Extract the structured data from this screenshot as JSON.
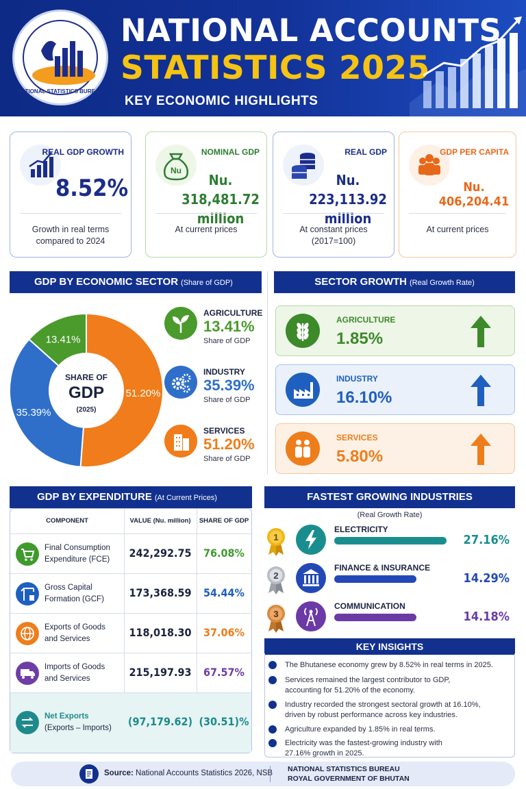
{
  "header": {
    "title_line1": "NATIONAL ACCOUNTS",
    "title_line2": "STATISTICS 2025",
    "subtitle": "KEY ECONOMIC HIGHLIGHTS",
    "logo_text": "NATIONAL STATISTICS BUREAU"
  },
  "kpis": [
    {
      "label": "REAL GDP GROWTH",
      "value": "8.52%",
      "sub1": "Growth in real terms",
      "sub2": "compared to 2024",
      "color": "#1b2d8a",
      "border": "#9fb3e0",
      "icon": "bar-chart-up-icon"
    },
    {
      "label": "NOMINAL GDP",
      "value_line1": "Nu. 318,481.72",
      "value_line2": "million",
      "sub1": "At current prices",
      "color": "#2e7d32",
      "border": "#b7d8a8",
      "icon": "money-bag-icon",
      "icon_text": "Nu"
    },
    {
      "label": "REAL GDP",
      "value_line1": "Nu. 223,113.92",
      "value_line2": "million",
      "sub1": "At constant prices",
      "sub2": "(2017=100)",
      "color": "#1b2d8a",
      "border": "#9fb3e0",
      "icon": "coins-stack-icon"
    },
    {
      "label": "GDP PER CAPITA",
      "value": "Nu. 406,204.41",
      "sub1": "At current prices",
      "color": "#e8681a",
      "border": "#f3c79f",
      "icon": "people-icon"
    }
  ],
  "sector_share": {
    "header": "GDP BY ECONOMIC SECTOR",
    "header_note": "(Share of GDP)",
    "center_line1": "SHARE OF",
    "center_line2": "GDP",
    "center_line3": "(2025)",
    "items": [
      {
        "name": "AGRICULTURE",
        "value": "13.41%",
        "share": 13.41,
        "sub": "Share of GDP",
        "color": "#4a9a2c",
        "icon": "sprout-icon"
      },
      {
        "name": "INDUSTRY",
        "value": "35.39%",
        "share": 35.39,
        "sub": "Share of GDP",
        "color": "#2f6fc9",
        "icon": "gears-icon"
      },
      {
        "name": "SERVICES",
        "value": "51.20%",
        "share": 51.2,
        "sub": "Share of GDP",
        "color": "#f07c1b",
        "icon": "buildings-icon"
      }
    ]
  },
  "sector_growth": {
    "header": "SECTOR GROWTH",
    "header_note": "(Real Growth Rate)",
    "items": [
      {
        "name": "AGRICULTURE",
        "value": "1.85%",
        "color": "#3c8a2a",
        "bg": "#eef6e8",
        "border": "#b7d8a8",
        "icon": "wheat-icon"
      },
      {
        "name": "INDUSTRY",
        "value": "16.10%",
        "color": "#1f5fbf",
        "bg": "#eaf1fb",
        "border": "#a9c2ea",
        "icon": "factory-icon"
      },
      {
        "name": "SERVICES",
        "value": "5.80%",
        "color": "#ee7d1c",
        "bg": "#fdf1e6",
        "border": "#f3c79f",
        "icon": "people-icon"
      }
    ]
  },
  "expenditure": {
    "header": "GDP BY EXPENDITURE",
    "header_note": "(At Current Prices)",
    "columns": [
      "COMPONENT",
      "VALUE (Nu. million)",
      "SHARE OF GDP"
    ],
    "rows": [
      {
        "line1": "Final Consumption",
        "line2": "Expenditure (FCE)",
        "value": "242,292.75",
        "share": "76.08%",
        "color": "#3f9a2e",
        "icon": "cart-icon"
      },
      {
        "line1": "Gross Capital",
        "line2": "Formation (GCF)",
        "value": "173,368.59",
        "share": "54.44%",
        "color": "#1f5fbf",
        "icon": "crane-icon"
      },
      {
        "line1": "Exports of Goods",
        "line2": "and Services",
        "value": "118,018.30",
        "share": "37.06%",
        "color": "#ee7d1c",
        "icon": "globe-icon"
      },
      {
        "line1": "Imports of Goods",
        "line2": "and Services",
        "value": "215,197.93",
        "share": "67.57%",
        "color": "#6e3ea5",
        "icon": "truck-icon"
      },
      {
        "line1": "Net Exports",
        "line2": "(Exports – Imports)",
        "value": "(97,179.62)",
        "share": "(30.51)%",
        "color": "#1e8a8c",
        "icon": "exchange-icon"
      }
    ]
  },
  "fastest": {
    "header": "FASTEST GROWING INDUSTRIES",
    "note": "(Real Growth Rate)",
    "items": [
      {
        "rank": "1",
        "name": "ELECTRICITY",
        "value": "27.16%",
        "growth": 27.16,
        "color": "#1a8e8f",
        "medal": "#f2b517",
        "icon": "lightning-icon"
      },
      {
        "rank": "2",
        "name": "FINANCE & INSURANCE",
        "value": "14.29%",
        "growth": 14.29,
        "color": "#2249b5",
        "medal": "#b8bcc4",
        "icon": "bank-icon"
      },
      {
        "rank": "3",
        "name": "COMMUNICATION",
        "value": "14.18%",
        "growth": 14.18,
        "color": "#6b3aa6",
        "medal": "#d88a3a",
        "icon": "antenna-icon"
      }
    ]
  },
  "insights": {
    "header": "KEY INSIGHTS",
    "items": [
      {
        "l1": "The Bhutanese economy grew by 8.52% in real terms in 2025.",
        "l2": ""
      },
      {
        "l1": "Services remained the largest contributor to GDP,",
        "l2": "accounting for 51.20% of the economy."
      },
      {
        "l1": "Industry recorded the strongest sectoral growth at 16.10%,",
        "l2": "driven by robust performance across key industries."
      },
      {
        "l1": "Agriculture expanded by 1.85% in real terms.",
        "l2": ""
      },
      {
        "l1": "Electricity was the fastest-growing industry with",
        "l2": "27.16% growth in 2025."
      }
    ]
  },
  "footer": {
    "source_label": "Source:",
    "source_text": "National Accounts Statistics 2026, NSB",
    "org_line1": "NATIONAL STATISTICS BUREAU",
    "org_line2": "ROYAL GOVERNMENT OF BHUTAN"
  }
}
